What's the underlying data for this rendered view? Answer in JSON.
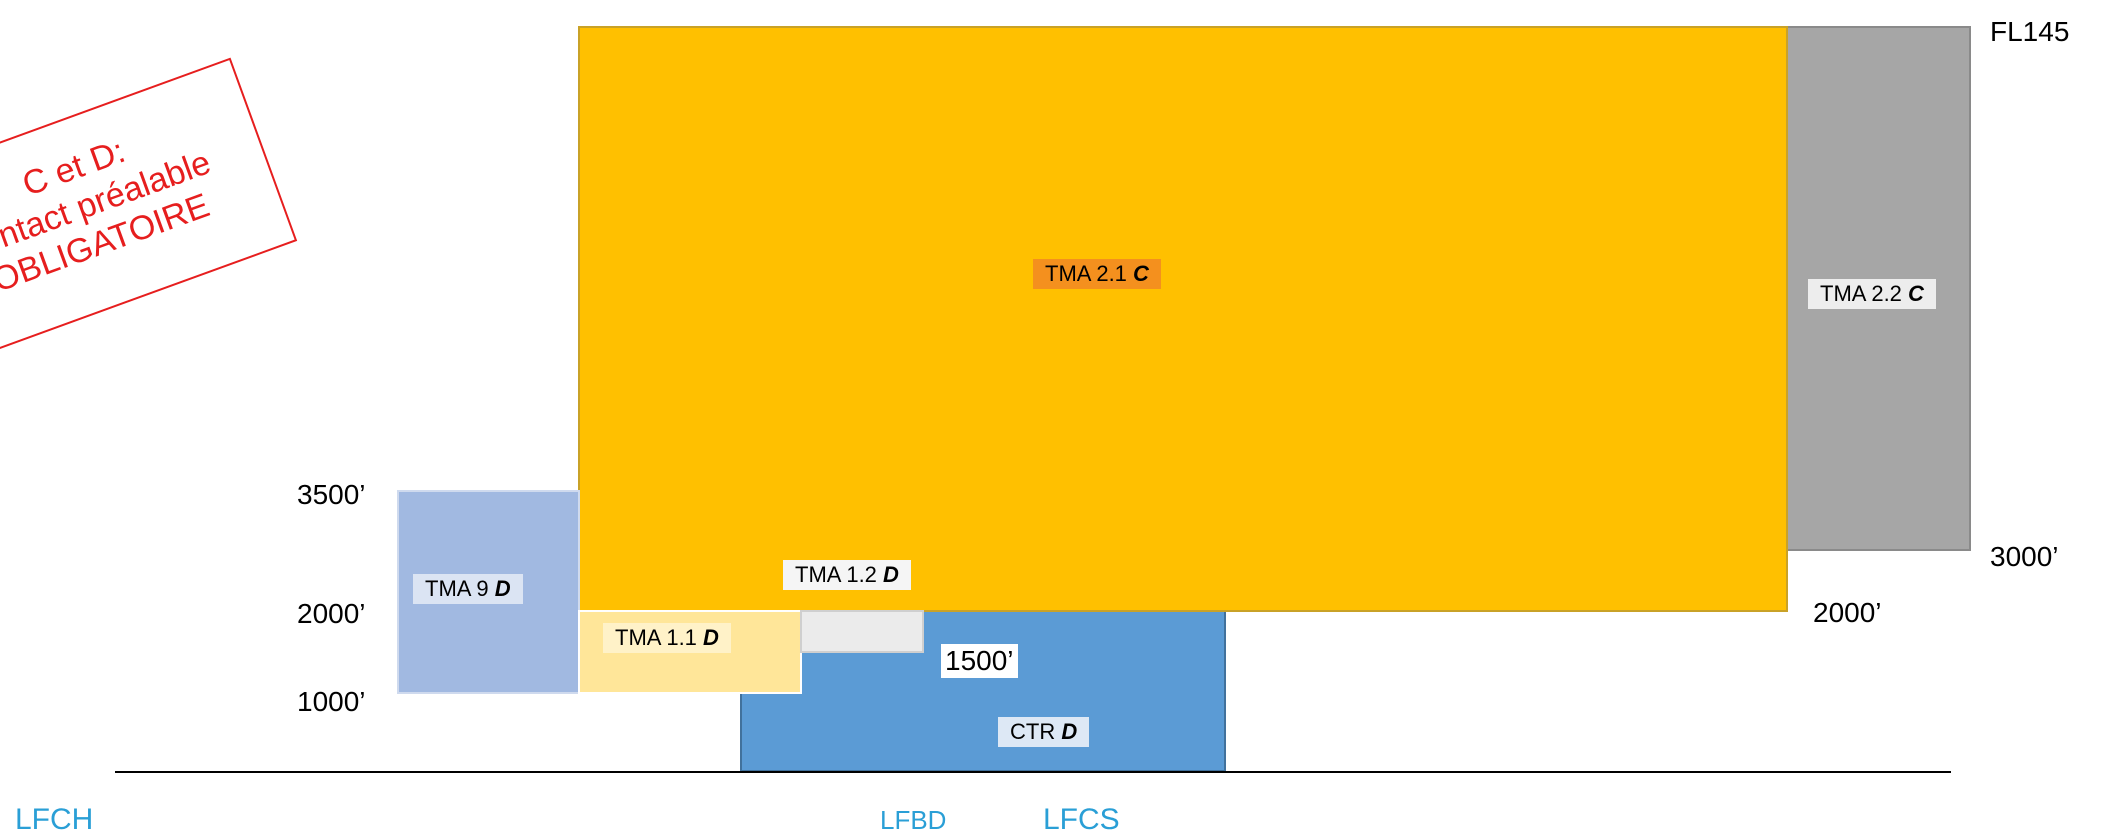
{
  "warning": {
    "line1": "C et D:",
    "line2": "contact préalable",
    "line3": "OBLIGATOIRE",
    "color": "#e61e1e"
  },
  "zones": {
    "tma21": {
      "name": "TMA 2.1 ",
      "class": "C",
      "color": "#ffc000"
    },
    "tma22": {
      "name": "TMA 2.2 ",
      "class": "C",
      "color": "#a6a6a6"
    },
    "tma9": {
      "name": "TMA 9 ",
      "class": "D",
      "color": "#a1b9e1"
    },
    "tma11": {
      "name": "TMA 1.1 ",
      "class": "D",
      "color": "#ffe699"
    },
    "tma12": {
      "name": "TMA 1.2 ",
      "class": "D",
      "color": "#ebebeb"
    },
    "ctr": {
      "name": "CTR ",
      "class": "D",
      "color": "#5b9bd5"
    }
  },
  "altitudes": {
    "fl145": "FL145",
    "a3000": "3000’",
    "a2000_right": "2000’",
    "a3500": "3500’",
    "a2000_left": "2000’",
    "a1000": "1000’",
    "a1500": "1500’"
  },
  "aerodromes": {
    "lfch": "LFCH",
    "lfbd": "LFBD",
    "lfcs": "LFCS",
    "color": "#2a9fd6"
  }
}
